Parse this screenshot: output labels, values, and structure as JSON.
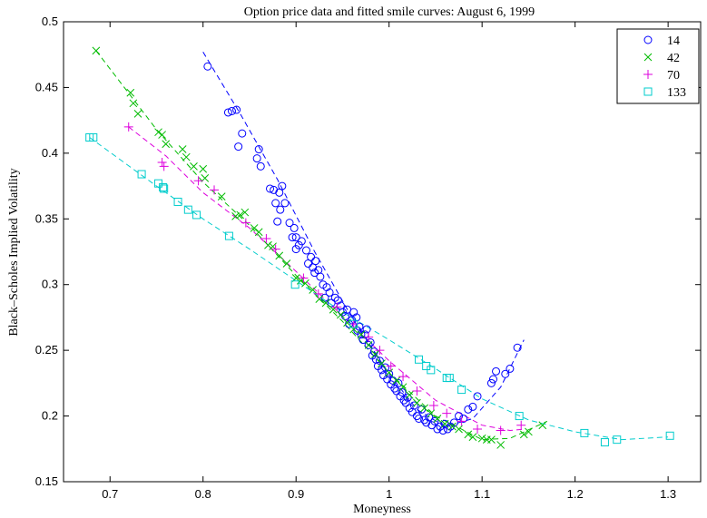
{
  "chart_data": {
    "type": "scatter",
    "title": "Option price data and fitted smile curves: August 6, 1999",
    "xlabel": "Moneyness",
    "ylabel": "Black–Scholes Implied Volatility",
    "xlim": [
      0.65,
      1.335
    ],
    "ylim": [
      0.15,
      0.5
    ],
    "xticks": [
      "0.7",
      "0.8",
      "0.9",
      "1",
      "1.1",
      "1.2",
      "1.3"
    ],
    "yticks": [
      "0.15",
      "0.2",
      "0.25",
      "0.3",
      "0.35",
      "0.4",
      "0.45",
      "0.5"
    ],
    "grid": false,
    "legend_position": "top-right",
    "series": [
      {
        "name": "14",
        "marker": "circle",
        "color": "#0000ff",
        "points": [
          [
            0.805,
            0.466
          ],
          [
            0.827,
            0.431
          ],
          [
            0.831,
            0.432
          ],
          [
            0.836,
            0.433
          ],
          [
            0.842,
            0.415
          ],
          [
            0.838,
            0.405
          ],
          [
            0.86,
            0.403
          ],
          [
            0.858,
            0.396
          ],
          [
            0.862,
            0.39
          ],
          [
            0.872,
            0.373
          ],
          [
            0.876,
            0.372
          ],
          [
            0.882,
            0.37
          ],
          [
            0.885,
            0.375
          ],
          [
            0.878,
            0.362
          ],
          [
            0.883,
            0.357
          ],
          [
            0.88,
            0.348
          ],
          [
            0.888,
            0.362
          ],
          [
            0.893,
            0.347
          ],
          [
            0.898,
            0.343
          ],
          [
            0.9,
            0.336
          ],
          [
            0.896,
            0.336
          ],
          [
            0.903,
            0.33
          ],
          [
            0.906,
            0.333
          ],
          [
            0.9,
            0.327
          ],
          [
            0.911,
            0.326
          ],
          [
            0.916,
            0.321
          ],
          [
            0.913,
            0.316
          ],
          [
            0.918,
            0.313
          ],
          [
            0.921,
            0.318
          ],
          [
            0.924,
            0.311
          ],
          [
            0.926,
            0.306
          ],
          [
            0.92,
            0.309
          ],
          [
            0.929,
            0.3
          ],
          [
            0.933,
            0.298
          ],
          [
            0.936,
            0.294
          ],
          [
            0.931,
            0.29
          ],
          [
            0.938,
            0.286
          ],
          [
            0.942,
            0.29
          ],
          [
            0.945,
            0.288
          ],
          [
            0.948,
            0.284
          ],
          [
            0.95,
            0.279
          ],
          [
            0.953,
            0.276
          ],
          [
            0.955,
            0.281
          ],
          [
            0.957,
            0.27
          ],
          [
            0.96,
            0.273
          ],
          [
            0.962,
            0.279
          ],
          [
            0.966,
            0.265
          ],
          [
            0.965,
            0.275
          ],
          [
            0.968,
            0.268
          ],
          [
            0.97,
            0.262
          ],
          [
            0.972,
            0.258
          ],
          [
            0.974,
            0.262
          ],
          [
            0.976,
            0.266
          ],
          [
            0.978,
            0.254
          ],
          [
            0.98,
            0.256
          ],
          [
            0.982,
            0.246
          ],
          [
            0.984,
            0.249
          ],
          [
            0.986,
            0.243
          ],
          [
            0.988,
            0.238
          ],
          [
            0.99,
            0.242
          ],
          [
            0.992,
            0.235
          ],
          [
            0.994,
            0.231
          ],
          [
            0.996,
            0.237
          ],
          [
            0.998,
            0.228
          ],
          [
            1.0,
            0.232
          ],
          [
            1.002,
            0.224
          ],
          [
            1.004,
            0.227
          ],
          [
            1.006,
            0.221
          ],
          [
            1.008,
            0.219
          ],
          [
            1.01,
            0.225
          ],
          [
            1.012,
            0.215
          ],
          [
            1.014,
            0.218
          ],
          [
            1.016,
            0.212
          ],
          [
            1.018,
            0.21
          ],
          [
            1.02,
            0.214
          ],
          [
            1.022,
            0.206
          ],
          [
            1.025,
            0.203
          ],
          [
            1.027,
            0.208
          ],
          [
            1.03,
            0.2
          ],
          [
            1.032,
            0.198
          ],
          [
            1.035,
            0.205
          ],
          [
            1.038,
            0.197
          ],
          [
            1.04,
            0.195
          ],
          [
            1.043,
            0.199
          ],
          [
            1.046,
            0.193
          ],
          [
            1.049,
            0.196
          ],
          [
            1.052,
            0.19
          ],
          [
            1.055,
            0.192
          ],
          [
            1.058,
            0.189
          ],
          [
            1.06,
            0.194
          ],
          [
            1.063,
            0.19
          ],
          [
            1.066,
            0.192
          ],
          [
            1.07,
            0.195
          ],
          [
            1.075,
            0.2
          ],
          [
            1.08,
            0.198
          ],
          [
            1.085,
            0.205
          ],
          [
            1.09,
            0.207
          ],
          [
            1.095,
            0.215
          ],
          [
            1.11,
            0.225
          ],
          [
            1.112,
            0.228
          ],
          [
            1.115,
            0.234
          ],
          [
            1.125,
            0.232
          ],
          [
            1.13,
            0.236
          ],
          [
            1.138,
            0.252
          ]
        ],
        "fit": [
          [
            0.8,
            0.477
          ],
          [
            0.84,
            0.43
          ],
          [
            0.88,
            0.38
          ],
          [
            0.92,
            0.325
          ],
          [
            0.96,
            0.275
          ],
          [
            1.0,
            0.232
          ],
          [
            1.03,
            0.205
          ],
          [
            1.06,
            0.192
          ],
          [
            1.09,
            0.198
          ],
          [
            1.12,
            0.222
          ],
          [
            1.145,
            0.258
          ]
        ]
      },
      {
        "name": "42",
        "marker": "x",
        "color": "#00bb00",
        "points": [
          [
            0.685,
            0.478
          ],
          [
            0.722,
            0.446
          ],
          [
            0.725,
            0.438
          ],
          [
            0.73,
            0.43
          ],
          [
            0.752,
            0.416
          ],
          [
            0.756,
            0.414
          ],
          [
            0.76,
            0.407
          ],
          [
            0.778,
            0.403
          ],
          [
            0.782,
            0.397
          ],
          [
            0.79,
            0.39
          ],
          [
            0.8,
            0.388
          ],
          [
            0.802,
            0.381
          ],
          [
            0.82,
            0.367
          ],
          [
            0.835,
            0.352
          ],
          [
            0.84,
            0.353
          ],
          [
            0.845,
            0.355
          ],
          [
            0.855,
            0.343
          ],
          [
            0.86,
            0.34
          ],
          [
            0.87,
            0.33
          ],
          [
            0.875,
            0.329
          ],
          [
            0.882,
            0.322
          ],
          [
            0.89,
            0.316
          ],
          [
            0.9,
            0.305
          ],
          [
            0.905,
            0.303
          ],
          [
            0.91,
            0.301
          ],
          [
            0.918,
            0.296
          ],
          [
            0.925,
            0.289
          ],
          [
            0.932,
            0.286
          ],
          [
            0.94,
            0.281
          ],
          [
            0.948,
            0.277
          ],
          [
            0.955,
            0.271
          ],
          [
            0.962,
            0.266
          ],
          [
            0.97,
            0.262
          ],
          [
            0.978,
            0.254
          ],
          [
            0.985,
            0.247
          ],
          [
            0.992,
            0.24
          ],
          [
            1.0,
            0.233
          ],
          [
            1.008,
            0.227
          ],
          [
            1.015,
            0.222
          ],
          [
            1.022,
            0.216
          ],
          [
            1.03,
            0.21
          ],
          [
            1.038,
            0.206
          ],
          [
            1.045,
            0.202
          ],
          [
            1.052,
            0.198
          ],
          [
            1.06,
            0.194
          ],
          [
            1.068,
            0.192
          ],
          [
            1.075,
            0.19
          ],
          [
            1.085,
            0.186
          ],
          [
            1.09,
            0.184
          ],
          [
            1.1,
            0.183
          ],
          [
            1.105,
            0.182
          ],
          [
            1.11,
            0.182
          ],
          [
            1.12,
            0.178
          ],
          [
            1.145,
            0.186
          ],
          [
            1.15,
            0.188
          ],
          [
            1.165,
            0.193
          ]
        ],
        "fit": [
          [
            0.685,
            0.478
          ],
          [
            0.75,
            0.418
          ],
          [
            0.8,
            0.378
          ],
          [
            0.85,
            0.345
          ],
          [
            0.9,
            0.307
          ],
          [
            0.95,
            0.272
          ],
          [
            1.0,
            0.233
          ],
          [
            1.05,
            0.2
          ],
          [
            1.1,
            0.182
          ],
          [
            1.13,
            0.183
          ],
          [
            1.17,
            0.196
          ]
        ]
      },
      {
        "name": "70",
        "marker": "plus",
        "color": "#dd00dd",
        "points": [
          [
            0.72,
            0.42
          ],
          [
            0.756,
            0.393
          ],
          [
            0.758,
            0.39
          ],
          [
            0.795,
            0.379
          ],
          [
            0.812,
            0.372
          ],
          [
            0.846,
            0.347
          ],
          [
            0.868,
            0.335
          ],
          [
            0.878,
            0.327
          ],
          [
            0.908,
            0.305
          ],
          [
            0.924,
            0.293
          ],
          [
            0.944,
            0.283
          ],
          [
            0.962,
            0.27
          ],
          [
            0.978,
            0.26
          ],
          [
            0.99,
            0.25
          ],
          [
            1.002,
            0.238
          ],
          [
            1.015,
            0.23
          ],
          [
            1.03,
            0.219
          ],
          [
            1.048,
            0.208
          ],
          [
            1.062,
            0.202
          ],
          [
            1.078,
            0.196
          ],
          [
            1.095,
            0.19
          ],
          [
            1.12,
            0.189
          ],
          [
            1.142,
            0.193
          ]
        ],
        "fit": [
          [
            0.72,
            0.42
          ],
          [
            0.76,
            0.398
          ],
          [
            0.8,
            0.37
          ],
          [
            0.85,
            0.343
          ],
          [
            0.9,
            0.31
          ],
          [
            0.95,
            0.276
          ],
          [
            1.0,
            0.242
          ],
          [
            1.05,
            0.212
          ],
          [
            1.1,
            0.193
          ],
          [
            1.13,
            0.189
          ],
          [
            1.145,
            0.19
          ]
        ]
      },
      {
        "name": "133",
        "marker": "square",
        "color": "#00cccc",
        "points": [
          [
            0.678,
            0.412
          ],
          [
            0.682,
            0.412
          ],
          [
            0.734,
            0.384
          ],
          [
            0.752,
            0.377
          ],
          [
            0.757,
            0.374
          ],
          [
            0.758,
            0.373
          ],
          [
            0.773,
            0.363
          ],
          [
            0.784,
            0.357
          ],
          [
            0.793,
            0.353
          ],
          [
            0.828,
            0.337
          ],
          [
            0.899,
            0.3
          ],
          [
            0.962,
            0.27
          ],
          [
            1.032,
            0.243
          ],
          [
            1.04,
            0.238
          ],
          [
            1.045,
            0.235
          ],
          [
            1.062,
            0.229
          ],
          [
            1.065,
            0.229
          ],
          [
            1.078,
            0.22
          ],
          [
            1.14,
            0.2
          ],
          [
            1.21,
            0.187
          ],
          [
            1.232,
            0.18
          ],
          [
            1.245,
            0.182
          ],
          [
            1.302,
            0.185
          ]
        ],
        "fit": [
          [
            0.678,
            0.412
          ],
          [
            0.75,
            0.375
          ],
          [
            0.8,
            0.35
          ],
          [
            0.85,
            0.327
          ],
          [
            0.9,
            0.303
          ],
          [
            0.95,
            0.279
          ],
          [
            1.0,
            0.258
          ],
          [
            1.05,
            0.236
          ],
          [
            1.1,
            0.213
          ],
          [
            1.15,
            0.197
          ],
          [
            1.2,
            0.188
          ],
          [
            1.25,
            0.182
          ],
          [
            1.3,
            0.184
          ]
        ]
      }
    ]
  }
}
